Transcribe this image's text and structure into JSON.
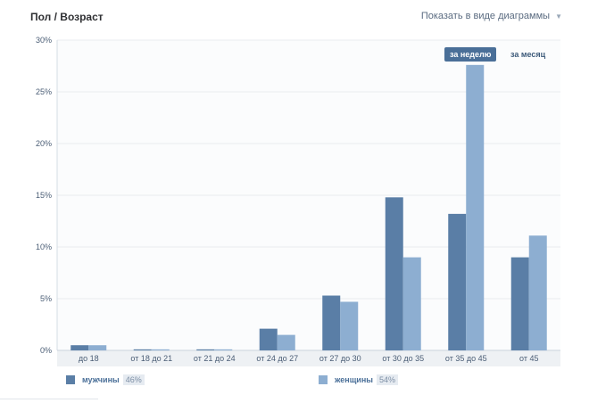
{
  "header": {
    "title": "Пол / Возраст",
    "view_toggle": "Показать в виде диаграммы"
  },
  "tabs": {
    "week": "за неделю",
    "month": "за месяц"
  },
  "legend": {
    "men_label": "мужчины",
    "men_pct": "46%",
    "women_label": "женщины",
    "women_pct": "54%"
  },
  "colors": {
    "men": "#5a7ea6",
    "women": "#8daed1",
    "grid": "#e8ecf0",
    "axis_text": "#4a5d75"
  },
  "chart_data": {
    "type": "bar",
    "title": "Пол / Возраст",
    "ylabel": "",
    "xlabel": "",
    "ylim": [
      0,
      30
    ],
    "yticks": [
      0,
      5,
      10,
      15,
      20,
      25,
      30
    ],
    "ytick_labels": [
      "0%",
      "5%",
      "10%",
      "15%",
      "20%",
      "25%",
      "30%"
    ],
    "categories": [
      "до 18",
      "от 18 до 21",
      "от 21 до 24",
      "от 24 до 27",
      "от 27 до 30",
      "от 30 до 35",
      "от 35 до 45",
      "от 45"
    ],
    "series": [
      {
        "name": "мужчины",
        "values": [
          0.5,
          0.1,
          0.1,
          2.1,
          5.3,
          14.8,
          13.2,
          9.0
        ]
      },
      {
        "name": "женщины",
        "values": [
          0.5,
          0.1,
          0.1,
          1.5,
          4.7,
          9.0,
          27.6,
          11.1
        ]
      }
    ]
  }
}
